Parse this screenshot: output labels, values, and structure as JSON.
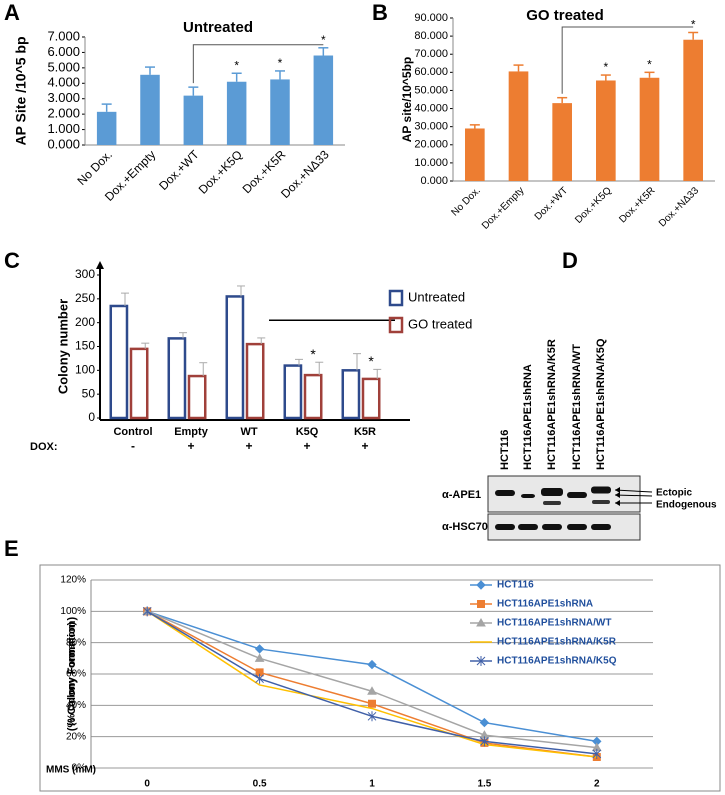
{
  "chart_data": [
    {
      "type": "bar",
      "panel": "A",
      "title": "Untreated",
      "y_label": "AP Site /10^5 bp",
      "categories": [
        "No Dox.",
        "Dox.+Empty",
        "Dox.+WT",
        "Dox.+K5Q",
        "Dox.+K5R",
        "Dox.+NΔ33"
      ],
      "values": [
        2.15,
        4.55,
        3.2,
        4.1,
        4.25,
        5.8
      ],
      "errors": [
        0.5,
        0.5,
        0.55,
        0.55,
        0.55,
        0.5
      ],
      "significant": [
        false,
        false,
        false,
        true,
        true,
        true
      ],
      "marker": "*",
      "color": "#5b9bd5",
      "ylim": [
        0,
        7
      ],
      "yticks": [
        {
          "value": 0,
          "label": "0.000"
        },
        {
          "value": 1,
          "label": "1.000"
        },
        {
          "value": 2,
          "label": "2.000"
        },
        {
          "value": 3,
          "label": "3.000"
        },
        {
          "value": 4,
          "label": "4.000"
        },
        {
          "value": 5,
          "label": "5.000"
        },
        {
          "value": 6,
          "label": "6.000"
        },
        {
          "value": 7,
          "label": "7.000"
        }
      ]
    },
    {
      "type": "bar",
      "panel": "B",
      "title": "GO treated",
      "y_label": "AP site/10^5bp",
      "categories": [
        "No Dox.",
        "Dox.+Empty",
        "Dox.+WT",
        "Dox.+K5Q",
        "Dox.+K5R",
        "Dox.+NΔ33"
      ],
      "values": [
        29,
        60.5,
        43,
        55.5,
        57,
        78
      ],
      "errors": [
        2,
        3.5,
        3,
        3,
        3,
        4
      ],
      "significant": [
        false,
        false,
        false,
        true,
        true,
        true
      ],
      "marker": "*",
      "color": "#ed7d31",
      "ylim": [
        0,
        90
      ],
      "yticks": [
        {
          "value": 0,
          "label": "0.000"
        },
        {
          "value": 10,
          "label": "10.000"
        },
        {
          "value": 20,
          "label": "20.000"
        },
        {
          "value": 30,
          "label": "30.000"
        },
        {
          "value": 40,
          "label": "40.000"
        },
        {
          "value": 50,
          "label": "50.000"
        },
        {
          "value": 60,
          "label": "60.000"
        },
        {
          "value": 70,
          "label": "70.000"
        },
        {
          "value": 80,
          "label": "80.000"
        },
        {
          "value": 90,
          "label": "90.000"
        }
      ]
    },
    {
      "type": "grouped-bar",
      "panel": "C",
      "y_label": "Colony number",
      "bar_style": "outline",
      "categories": [
        "Control",
        "Empty",
        "WT",
        "K5Q",
        "K5R"
      ],
      "row_label": "DOX:",
      "row": [
        "-",
        "+",
        "+",
        "+",
        "+"
      ],
      "series": [
        {
          "name": "Untreated",
          "color": "#2e4a8c",
          "values": [
            235,
            167,
            255,
            110,
            100
          ],
          "errors": [
            27,
            12,
            22,
            13,
            35
          ],
          "significant": [
            false,
            false,
            false,
            false,
            false
          ]
        },
        {
          "name": "GO treated",
          "color": "#a0403a",
          "values": [
            145,
            88,
            155,
            90,
            82
          ],
          "errors": [
            12,
            28,
            13,
            27,
            20
          ],
          "significant": [
            false,
            false,
            false,
            true,
            true
          ]
        }
      ],
      "marker": "*",
      "ylim": [
        0,
        300
      ],
      "yticks": [
        0,
        50,
        100,
        150,
        200,
        250,
        300
      ]
    },
    {
      "type": "line",
      "panel": "E",
      "y_label": "(% Colony Formation)",
      "x_label": "MMS (mM)",
      "categories": [
        "0",
        "0.5",
        "1",
        "1.5",
        "2"
      ],
      "grid": true,
      "series": [
        {
          "name": "HCT116",
          "color": "#4a8fd4",
          "marker": "diamond",
          "values": [
            100,
            76,
            66,
            29,
            17
          ]
        },
        {
          "name": "HCT116APE1shRNA",
          "color": "#ed7d31",
          "marker": "square",
          "values": [
            100,
            61,
            41,
            16,
            7
          ]
        },
        {
          "name": "HCT116APE1shRNA/WT",
          "color": "#a5a5a5",
          "marker": "triangle",
          "values": [
            100,
            70,
            49,
            21,
            13
          ]
        },
        {
          "name": "HCT116APE1shRNA/K5R",
          "color": "#ffc000",
          "marker": "none",
          "values": [
            100,
            53,
            38,
            15,
            7
          ]
        },
        {
          "name": "HCT116APE1shRNA/K5Q",
          "color": "#4060a8",
          "marker": "star",
          "values": [
            100,
            57,
            33,
            17,
            9
          ]
        }
      ],
      "ylim": [
        0,
        120
      ],
      "yticks": [
        {
          "value": 0,
          "label": "0%"
        },
        {
          "value": 20,
          "label": "20%"
        },
        {
          "value": 40,
          "label": "40%"
        },
        {
          "value": 60,
          "label": "60%"
        },
        {
          "value": 80,
          "label": "80%"
        },
        {
          "value": 100,
          "label": "100%"
        },
        {
          "value": 120,
          "label": "120%"
        }
      ]
    }
  ],
  "blot": {
    "panel": "D",
    "lanes": [
      "HCT116",
      "HCT116APE1shRNA",
      "HCT116APE1shRNA/K5R",
      "HCT116APE1shRNA/WT",
      "HCT116APE1shRNA/K5Q"
    ],
    "rows": [
      "α-APE1",
      "α-HSC70"
    ],
    "annotations": [
      "Ectopic",
      "Endogenous"
    ]
  }
}
